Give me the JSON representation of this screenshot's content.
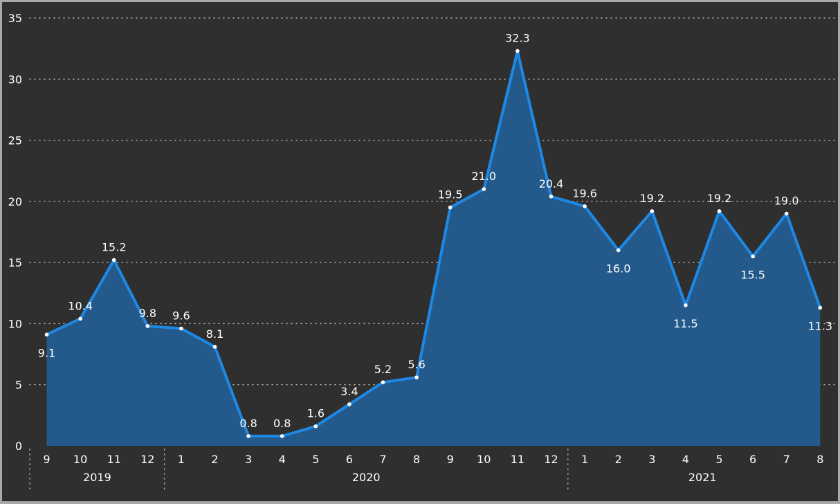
{
  "chart_data": {
    "type": "area",
    "title": "",
    "xlabel": "",
    "ylabel": "",
    "ylim": [
      0,
      35
    ],
    "y_ticks": [
      "0",
      "5",
      "10",
      "15",
      "20",
      "25",
      "30",
      "35"
    ],
    "grid": true,
    "legend": "none",
    "colors": {
      "background": "#2f2f2f",
      "line": "#1e88e5",
      "area": "#245a8b",
      "marker": "#ffffff",
      "text": "#ffffff",
      "grid": "#bdbdbd"
    },
    "x": [
      "9",
      "10",
      "11",
      "12",
      "1",
      "2",
      "3",
      "4",
      "5",
      "6",
      "7",
      "8",
      "9",
      "10",
      "11",
      "12",
      "1",
      "2",
      "3",
      "4",
      "5",
      "6",
      "7",
      "8"
    ],
    "year_groups": [
      {
        "label": "2019",
        "count": 4
      },
      {
        "label": "2020",
        "count": 12
      },
      {
        "label": "2021",
        "count": 8
      }
    ],
    "values": [
      9.1,
      10.4,
      15.2,
      9.8,
      9.6,
      8.1,
      0.8,
      0.8,
      1.6,
      3.4,
      5.2,
      5.6,
      19.5,
      21.0,
      32.3,
      20.4,
      19.6,
      16.0,
      19.2,
      11.5,
      19.2,
      15.5,
      19.0,
      11.3
    ],
    "data_labels": [
      "9.1",
      "10.4",
      "15.2",
      "9.8",
      "9.6",
      "8.1",
      "0.8",
      "0.8",
      "1.6",
      "3.4",
      "5.2",
      "5.6",
      "19.5",
      "21.0",
      "32.3",
      "20.4",
      "19.6",
      "16.0",
      "19.2",
      "11.5",
      "19.2",
      "15.5",
      "19.0",
      "11.3"
    ]
  }
}
